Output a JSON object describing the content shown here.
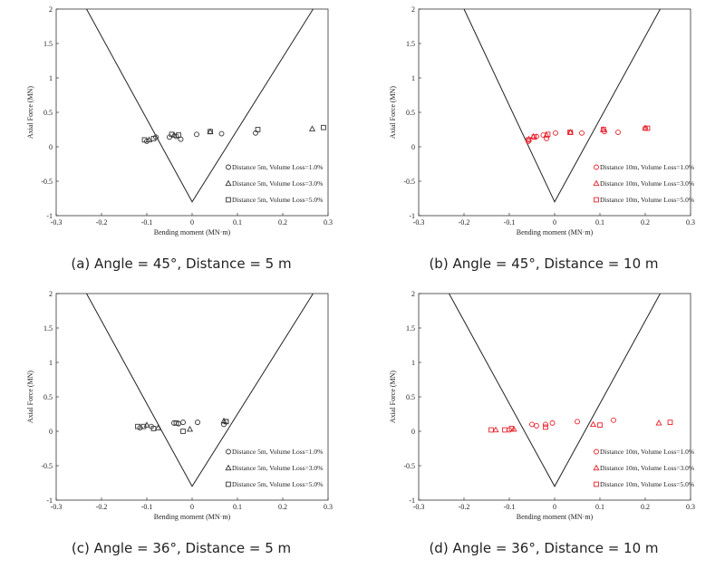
{
  "chart_data": [
    {
      "type": "scatter",
      "caption": "(a) Angle = 45°, Distance = 5 m",
      "xlabel": "Bending moment (MN·m)",
      "ylabel": "Axial Force (MN)",
      "xlim": [
        -0.3,
        0.3
      ],
      "ylim": [
        -1,
        2
      ],
      "xticks": [
        "-0.3",
        "-0.2",
        "-0.1",
        "0",
        "0.1",
        "0.2",
        "0.3"
      ],
      "yticks": [
        "-1",
        "-0.5",
        "0",
        "0.5",
        "1",
        "1.5",
        "2"
      ],
      "color": "#333333",
      "interaction_diagram": {
        "x": [
          -0.233,
          0,
          0.267
        ],
        "y": [
          2,
          -0.8,
          2
        ]
      },
      "series": [
        {
          "name": "Distance 5m, Volume Loss=1.0%",
          "marker": "circle",
          "x": [
            -0.1,
            -0.08,
            -0.05,
            -0.035,
            -0.025,
            0.01,
            0.065,
            0.14
          ],
          "y": [
            0.08,
            0.14,
            0.14,
            0.15,
            0.11,
            0.18,
            0.19,
            0.2
          ]
        },
        {
          "name": "Distance 5m, Volume Loss=3.0%",
          "marker": "triangle",
          "x": [
            -0.095,
            -0.04,
            0.04,
            0.265
          ],
          "y": [
            0.1,
            0.17,
            0.22,
            0.26
          ]
        },
        {
          "name": "Distance 5m, Volume Loss=5.0%",
          "marker": "square",
          "x": [
            -0.105,
            -0.085,
            -0.045,
            -0.03,
            0.04,
            0.145,
            0.29
          ],
          "y": [
            0.1,
            0.12,
            0.18,
            0.17,
            0.22,
            0.25,
            0.28
          ]
        }
      ]
    },
    {
      "type": "scatter",
      "caption": "(b) Angle = 45°, Distance = 10 m",
      "xlabel": "Bending moment (MN·m)",
      "ylabel": "Axial Force (MN)",
      "xlim": [
        -0.3,
        0.3
      ],
      "ylim": [
        -1,
        2
      ],
      "xticks": [
        "-0.3",
        "-0.2",
        "-0.1",
        "0",
        "0.1",
        "0.2",
        "0.3"
      ],
      "yticks": [
        "-1",
        "-0.5",
        "0",
        "0.5",
        "1",
        "1.5",
        "2"
      ],
      "color": "#e8202a",
      "interaction_diagram": {
        "x": [
          -0.2,
          0,
          0.233
        ],
        "y": [
          2,
          -0.8,
          2
        ]
      },
      "series": [
        {
          "name": "Distance 10m, Volume Loss=1.0%",
          "marker": "circle",
          "x": [
            -0.058,
            -0.04,
            -0.025,
            -0.018,
            0.002,
            0.035,
            0.06,
            0.11,
            0.14,
            0.2
          ],
          "y": [
            0.08,
            0.15,
            0.17,
            0.12,
            0.2,
            0.21,
            0.2,
            0.22,
            0.21,
            0.27
          ]
        },
        {
          "name": "Distance 10m, Volume Loss=3.0%",
          "marker": "triangle",
          "x": [
            -0.057,
            -0.047,
            -0.018,
            0.035,
            0.107,
            0.2
          ],
          "y": [
            0.11,
            0.15,
            0.17,
            0.21,
            0.25,
            0.27
          ]
        },
        {
          "name": "Distance 10m, Volume Loss=5.0%",
          "marker": "square",
          "x": [
            -0.058,
            -0.045,
            -0.015,
            0.034,
            0.108,
            0.205
          ],
          "y": [
            0.1,
            0.14,
            0.18,
            0.21,
            0.25,
            0.27
          ]
        }
      ]
    },
    {
      "type": "scatter",
      "caption": "(c) Angle = 36°, Distance = 5 m",
      "xlabel": "Bending moment (MN·m)",
      "ylabel": "Axial Force (MN)",
      "xlim": [
        -0.3,
        0.3
      ],
      "ylim": [
        -1,
        2
      ],
      "xticks": [
        "-0.3",
        "-0.2",
        "-0.1",
        "0",
        "0.1",
        "0.2",
        "0.3"
      ],
      "yticks": [
        "-1",
        "-0.5",
        "0",
        "0.5",
        "1",
        "1.5",
        "2"
      ],
      "color": "#333333",
      "interaction_diagram": {
        "x": [
          -0.233,
          0,
          0.267
        ],
        "y": [
          2,
          -0.8,
          2
        ]
      },
      "series": [
        {
          "name": "Distance 5m, Volume Loss=1.0%",
          "marker": "circle",
          "x": [
            -0.115,
            -0.09,
            -0.04,
            -0.03,
            -0.02,
            0.012,
            0.07,
            0.075
          ],
          "y": [
            0.05,
            0.07,
            0.12,
            0.11,
            0.13,
            0.13,
            0.1,
            0.14
          ]
        },
        {
          "name": "Distance 5m, Volume Loss=3.0%",
          "marker": "triangle",
          "x": [
            -0.1,
            -0.075,
            -0.005,
            0.07
          ],
          "y": [
            0.09,
            0.05,
            0.03,
            0.15
          ]
        },
        {
          "name": "Distance 5m, Volume Loss=5.0%",
          "marker": "square",
          "x": [
            -0.12,
            -0.107,
            -0.085,
            -0.035,
            -0.02,
            0.075
          ],
          "y": [
            0.07,
            0.07,
            0.04,
            0.12,
            0.0,
            0.14
          ]
        }
      ]
    },
    {
      "type": "scatter",
      "caption": "(d) Angle = 36°, Distance = 10 m",
      "xlabel": "Bending moment (MN·m)",
      "ylabel": "Axial Force (MN)",
      "xlim": [
        -0.3,
        0.3
      ],
      "ylim": [
        -1,
        2
      ],
      "xticks": [
        "-0.3",
        "-0.2",
        "-0.1",
        "0",
        "0.1",
        "0.2",
        "0.3"
      ],
      "yticks": [
        "-1",
        "-0.5",
        "0",
        "0.5",
        "1",
        "1.5",
        "2"
      ],
      "color": "#e8202a",
      "interaction_diagram": {
        "x": [
          -0.233,
          0,
          0.233
        ],
        "y": [
          2,
          -0.8,
          2
        ]
      },
      "series": [
        {
          "name": "Distance 10m, Volume Loss=1.0%",
          "marker": "circle",
          "x": [
            -0.1,
            -0.05,
            -0.04,
            -0.02,
            -0.005,
            0.05,
            0.13
          ],
          "y": [
            0.02,
            0.1,
            0.08,
            0.1,
            0.12,
            0.14,
            0.16
          ]
        },
        {
          "name": "Distance 10m, Volume Loss=3.0%",
          "marker": "triangle",
          "x": [
            -0.13,
            -0.09,
            0.085,
            0.23
          ],
          "y": [
            0.02,
            0.03,
            0.1,
            0.12
          ]
        },
        {
          "name": "Distance 10m, Volume Loss=5.0%",
          "marker": "square",
          "x": [
            -0.14,
            -0.11,
            -0.095,
            -0.02,
            0.1,
            0.255
          ],
          "y": [
            0.02,
            0.02,
            0.04,
            0.06,
            0.09,
            0.13
          ]
        }
      ]
    }
  ]
}
